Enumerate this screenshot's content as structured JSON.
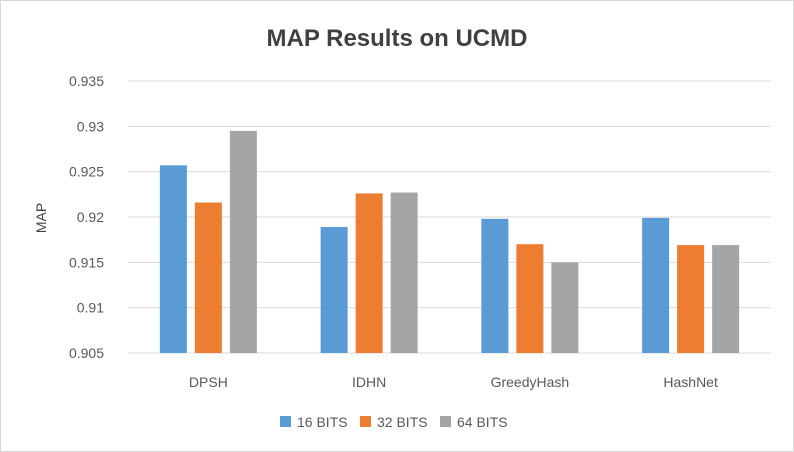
{
  "chart_data": {
    "type": "bar",
    "title": "MAP Results on UCMD",
    "xlabel": "",
    "ylabel": "MAP",
    "categories": [
      "DPSH",
      "IDHN",
      "GreedyHash",
      "HashNet"
    ],
    "series": [
      {
        "name": "16 BITS",
        "color": "#5b9bd5",
        "values": [
          0.9257,
          0.9189,
          0.9198,
          0.9199
        ]
      },
      {
        "name": "32 BITS",
        "color": "#ed7d31",
        "values": [
          0.9216,
          0.9226,
          0.917,
          0.9169
        ]
      },
      {
        "name": "64 BITS",
        "color": "#a5a5a5",
        "values": [
          0.9295,
          0.9227,
          0.915,
          0.9169
        ]
      }
    ],
    "ylim": [
      0.905,
      0.935
    ],
    "yticks": [
      "0.905",
      "0.91",
      "0.915",
      "0.92",
      "0.925",
      "0.93",
      "0.935"
    ],
    "grid": true,
    "legend_position": "bottom"
  }
}
